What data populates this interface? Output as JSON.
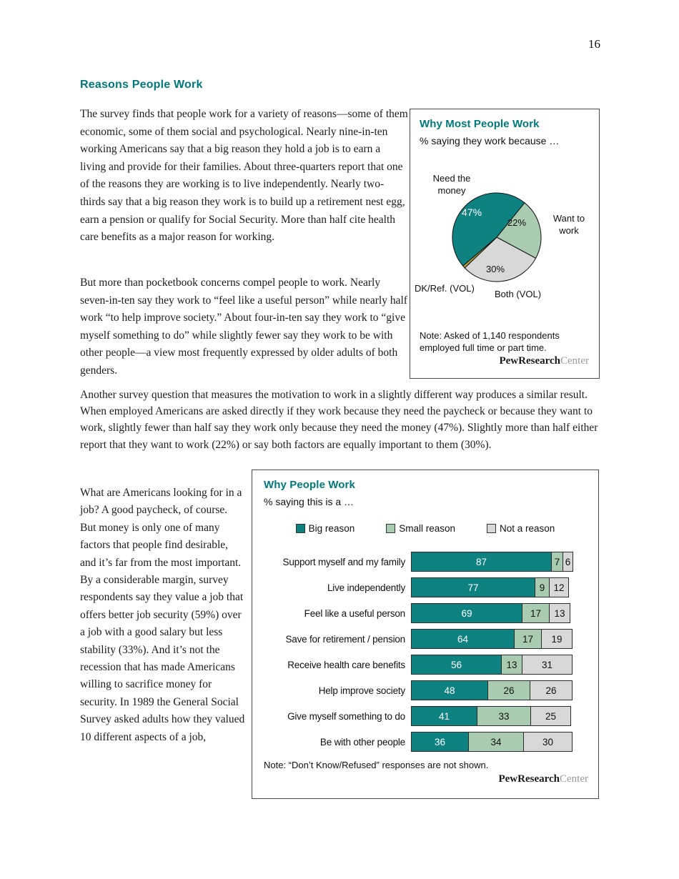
{
  "theme": {
    "accent": "#00797c"
  },
  "page": {
    "number": "16"
  },
  "heading": "Reasons People Work",
  "paragraphs": {
    "p1": "The survey finds that people work for a variety of reasons—some of them economic, some of them social and psychological. Nearly nine-in-ten working Americans say that a big reason they hold a job is to earn a living and provide for their families. About three-quarters report that one of the reasons they are working is to live independently. Nearly two-thirds say that a big reason they work is to build up a retirement nest egg, earn a pension or qualify for Social Security. More than half cite health care benefits as a major reason for working.",
    "p2": "But more than pocketbook concerns compel people to work. Nearly seven-in-ten say they work to “feel like a useful person” while nearly half work “to help improve society.” About four-in-ten say they work to “give myself something to do” while slightly fewer say they work to be with other people—a view most frequently expressed by older adults of both genders.",
    "p3": "Another survey question that measures the motivation to work in a slightly different way produces a similar result. When employed Americans are asked directly if they work because they need the paycheck or because they want to work, slightly fewer than half say they work only because they need the money (47%). Slightly more than half either report that they want to work (22%) or say both factors are equally important to them (30%).",
    "p4": "What are Americans looking for in a job? A good paycheck, of course. But money is only one of many factors that people find desirable, and it’s far from the most important. By a considerable margin, survey respondents say they value a job that offers better job security (59%) over a job with a good salary but less stability (33%). And it’s not the recession that has made Americans willing to sacrifice money for security. In 1989 the General Social Survey asked adults how they valued 10 different aspects of a job,"
  },
  "logo": {
    "bold": "PewResearch",
    "light": "Center"
  },
  "chart_data": [
    {
      "type": "pie",
      "title": "Why Most People Work",
      "subtitle": "% saying they work because …",
      "slices": [
        {
          "label": "Need the money",
          "value": 47,
          "display": "47%",
          "color": "#0e8280"
        },
        {
          "label": "Want to work",
          "value": 22,
          "display": "22%",
          "color": "#a9ccb0"
        },
        {
          "label": "Both (VOL)",
          "value": 30,
          "display": "30%",
          "color": "#d8d8d8"
        },
        {
          "label": "DK/Ref. (VOL)",
          "value": 1,
          "display": "",
          "color": "#b2a13e"
        }
      ],
      "note": "Note: Asked of 1,140 respondents employed full time or part time."
    },
    {
      "type": "bar",
      "stacked": true,
      "title": "Why People Work",
      "subtitle": "% saying this is a …",
      "legend": [
        "Big reason",
        "Small reason",
        "Not a reason"
      ],
      "colors": [
        "#0e8280",
        "#a9ccb0",
        "#d8d8d8"
      ],
      "categories": [
        "Support myself and my family",
        "Live independently",
        "Feel like a useful person",
        "Save for retirement / pension",
        "Receive health care benefits",
        "Help improve society",
        "Give myself something to do",
        "Be with other people"
      ],
      "series": [
        {
          "name": "Big reason",
          "values": [
            87,
            77,
            69,
            64,
            56,
            48,
            41,
            36
          ]
        },
        {
          "name": "Small reason",
          "values": [
            7,
            9,
            17,
            17,
            13,
            26,
            33,
            34
          ]
        },
        {
          "name": "Not a reason",
          "values": [
            6,
            12,
            13,
            19,
            31,
            26,
            25,
            30
          ]
        }
      ],
      "xlim": [
        0,
        100
      ],
      "note": "Note: “Don’t Know/Refused” responses are not shown."
    }
  ]
}
